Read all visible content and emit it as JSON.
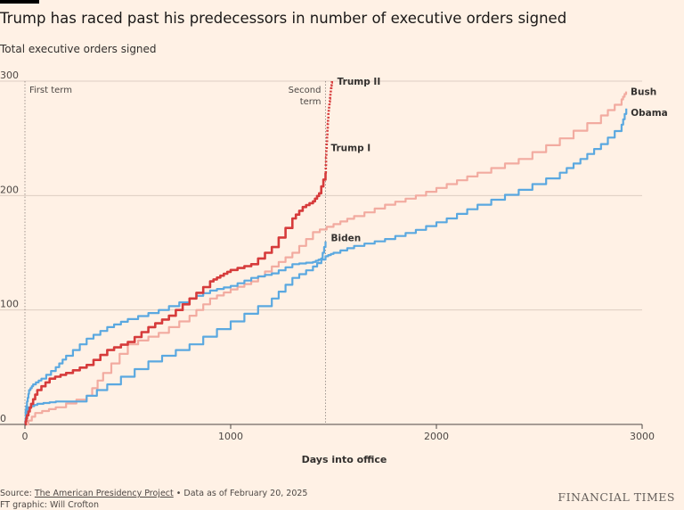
{
  "header": {
    "title": "Trump has raced past his predecessors in number of executive orders signed",
    "subtitle": "Total executive orders signed"
  },
  "footer": {
    "source_prefix": "Source: ",
    "source_link": "The American Presidency Project",
    "source_suffix": " • Data as of February 20, 2025",
    "credit": "FT graphic: Will Crofton",
    "brand": "FINANCIAL TIMES"
  },
  "colors": {
    "background": "#fff1e5",
    "grid": "#ddcdc2",
    "trump": "#d63b3b",
    "bush": "#f2aba0",
    "biden": "#5aa8e0",
    "obama": "#5aa8e0"
  },
  "chart_data": {
    "type": "line",
    "title": "Trump has raced past his predecessors in number of executive orders signed",
    "ylabel": "Total executive orders signed",
    "xlabel": "Days into office",
    "xlim": [
      0,
      3000
    ],
    "ylim": [
      0,
      300
    ],
    "xticks": [
      0,
      1000,
      2000,
      3000
    ],
    "yticks": [
      0,
      100,
      200,
      300
    ],
    "annotations": [
      {
        "text": "First term",
        "x": 0
      },
      {
        "text_lines": [
          "Second",
          "term"
        ],
        "x": 1461
      }
    ],
    "series": [
      {
        "name": "Obama",
        "label": "Obama",
        "color": "#5aa8e0",
        "style": "solid",
        "points": [
          [
            0,
            0
          ],
          [
            5,
            9
          ],
          [
            15,
            15
          ],
          [
            60,
            18
          ],
          [
            150,
            20
          ],
          [
            250,
            20
          ],
          [
            400,
            35
          ],
          [
            600,
            55
          ],
          [
            800,
            70
          ],
          [
            1000,
            90
          ],
          [
            1200,
            110
          ],
          [
            1300,
            128
          ],
          [
            1400,
            138
          ],
          [
            1461,
            147
          ],
          [
            1500,
            150
          ],
          [
            1600,
            156
          ],
          [
            1750,
            162
          ],
          [
            1900,
            170
          ],
          [
            2050,
            180
          ],
          [
            2200,
            192
          ],
          [
            2400,
            205
          ],
          [
            2600,
            220
          ],
          [
            2700,
            232
          ],
          [
            2800,
            245
          ],
          [
            2900,
            262
          ],
          [
            2923,
            276
          ]
        ]
      },
      {
        "name": "Bush",
        "label": "Bush",
        "color": "#f2aba0",
        "style": "solid",
        "points": [
          [
            0,
            0
          ],
          [
            50,
            10
          ],
          [
            150,
            15
          ],
          [
            300,
            25
          ],
          [
            380,
            45
          ],
          [
            500,
            70
          ],
          [
            650,
            80
          ],
          [
            800,
            95
          ],
          [
            900,
            110
          ],
          [
            1000,
            118
          ],
          [
            1100,
            125
          ],
          [
            1200,
            138
          ],
          [
            1300,
            150
          ],
          [
            1400,
            168
          ],
          [
            1500,
            175
          ],
          [
            1600,
            182
          ],
          [
            1750,
            192
          ],
          [
            1900,
            200
          ],
          [
            2050,
            210
          ],
          [
            2200,
            220
          ],
          [
            2400,
            232
          ],
          [
            2600,
            250
          ],
          [
            2800,
            270
          ],
          [
            2900,
            284
          ],
          [
            2922,
            291
          ]
        ]
      },
      {
        "name": "Biden",
        "label": "Biden",
        "color": "#5aa8e0",
        "style": "solid",
        "points": [
          [
            0,
            8
          ],
          [
            10,
            20
          ],
          [
            20,
            30
          ],
          [
            40,
            35
          ],
          [
            80,
            40
          ],
          [
            150,
            50
          ],
          [
            200,
            60
          ],
          [
            300,
            75
          ],
          [
            400,
            85
          ],
          [
            500,
            92
          ],
          [
            650,
            100
          ],
          [
            800,
            110
          ],
          [
            900,
            117
          ],
          [
            1000,
            121
          ],
          [
            1100,
            128
          ],
          [
            1200,
            132
          ],
          [
            1300,
            140
          ],
          [
            1400,
            142
          ],
          [
            1440,
            145
          ],
          [
            1461,
            160
          ]
        ]
      },
      {
        "name": "Trump I",
        "label": "Trump I",
        "color": "#d63b3b",
        "style": "solid",
        "points": [
          [
            0,
            0
          ],
          [
            10,
            8
          ],
          [
            30,
            18
          ],
          [
            60,
            30
          ],
          [
            120,
            40
          ],
          [
            200,
            45
          ],
          [
            300,
            52
          ],
          [
            400,
            65
          ],
          [
            500,
            72
          ],
          [
            600,
            85
          ],
          [
            700,
            95
          ],
          [
            800,
            110
          ],
          [
            900,
            125
          ],
          [
            950,
            130
          ],
          [
            1000,
            135
          ],
          [
            1100,
            140
          ],
          [
            1200,
            155
          ],
          [
            1300,
            180
          ],
          [
            1350,
            190
          ],
          [
            1400,
            195
          ],
          [
            1430,
            202
          ],
          [
            1461,
            220
          ]
        ]
      },
      {
        "name": "Trump II",
        "label": "Trump II",
        "color": "#d63b3b",
        "style": "dotted",
        "points": [
          [
            1461,
            220
          ],
          [
            1465,
            240
          ],
          [
            1470,
            258
          ],
          [
            1475,
            272
          ],
          [
            1480,
            282
          ],
          [
            1485,
            290
          ],
          [
            1490,
            296
          ],
          [
            1492,
            300
          ]
        ]
      }
    ]
  }
}
